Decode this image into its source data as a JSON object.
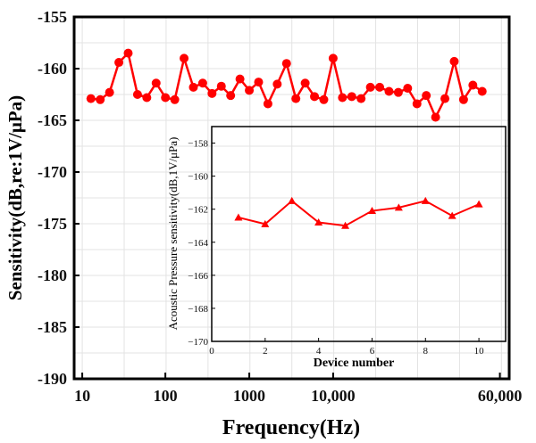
{
  "chart_data": [
    {
      "type": "line",
      "title": "",
      "xlabel": "Frequency(Hz)",
      "ylabel": "Sensitivity(dB,re:1V/μPa)",
      "ylim": [
        -190,
        -155
      ],
      "yticks": [
        -155,
        -160,
        -165,
        -170,
        -175,
        -180,
        -185,
        -190
      ],
      "xscale_note": "x values are sample indices along the frequency axis",
      "xlim": [
        -1.8,
        44.9
      ],
      "xticks": [
        {
          "label": "10",
          "pos": -0.93
        },
        {
          "label": "100",
          "pos": 7.99
        },
        {
          "label": "1000",
          "pos": 17.0
        },
        {
          "label": "10,000",
          "pos": 26.0
        },
        {
          "label": "60,000",
          "pos": 43.9
        }
      ],
      "grid": true,
      "color": "#ff0000",
      "marker": "circle",
      "values": [
        -162.9,
        -163.0,
        -162.3,
        -159.4,
        -158.5,
        -162.5,
        -162.8,
        -161.4,
        -162.8,
        -163.0,
        -159.0,
        -161.8,
        -161.4,
        -162.4,
        -161.7,
        -162.6,
        -161.0,
        -162.1,
        -161.3,
        -163.4,
        -161.5,
        -159.5,
        -162.9,
        -161.4,
        -162.7,
        -163.0,
        -159.0,
        -162.8,
        -162.7,
        -162.9,
        -161.8,
        -161.8,
        -162.2,
        -162.3,
        -161.9,
        -163.4,
        -162.6,
        -164.7,
        -162.9,
        -159.3,
        -163.0,
        -161.6,
        -162.2
      ]
    },
    {
      "type": "line",
      "title": "",
      "xlabel": "Device number",
      "ylabel": "Acoustic Pressure sensitivity(dB,1V/μPa)",
      "xlim": [
        0,
        11
      ],
      "ylim": [
        -170,
        -157
      ],
      "xticks": [
        0,
        2,
        4,
        6,
        8,
        10
      ],
      "yticks": [
        -158,
        -160,
        -162,
        -164,
        -166,
        -168,
        -170
      ],
      "color": "#ff0000",
      "marker": "triangle",
      "x": [
        1,
        2,
        3,
        4,
        5,
        6,
        7,
        8,
        9,
        10
      ],
      "values": [
        -162.5,
        -162.9,
        -161.5,
        -162.8,
        -163.0,
        -162.1,
        -161.9,
        -161.5,
        -162.4,
        -161.7
      ]
    }
  ]
}
